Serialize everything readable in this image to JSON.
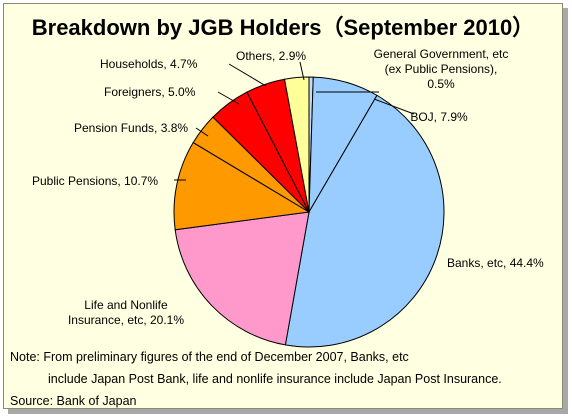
{
  "title": "Breakdown by JGB Holders（September 2010）",
  "note_line1": "Note: From preliminary figures of the end of December 2007, Banks, etc",
  "note_line2": "include Japan Post Bank, life and nonlife insurance include Japan Post Insurance.",
  "source": "Source: Bank of Japan",
  "chart_data": {
    "type": "pie",
    "title": "Breakdown by JGB Holders（September 2010）",
    "slices": [
      {
        "label": "General Government, etc (ex Public Pensions), 0.5%",
        "label_lines": [
          "General Government, etc",
          "(ex Public Pensions),",
          "0.5%"
        ],
        "value": 0.5,
        "color": "#c8d8f8"
      },
      {
        "label": "BOJ, 7.9%",
        "label_lines": [
          "BOJ, 7.9%"
        ],
        "value": 7.9,
        "color": "#99ccff"
      },
      {
        "label": "Banks, etc, 44.4%",
        "label_lines": [
          "Banks, etc, 44.4%"
        ],
        "value": 44.4,
        "color": "#99ccff"
      },
      {
        "label": "Life and Nonlife Insurance, etc, 20.1%",
        "label_lines": [
          "Life and Nonlife",
          "Insurance, etc, 20.1%"
        ],
        "value": 20.1,
        "color": "#ff99cc"
      },
      {
        "label": "Public Pensions, 10.7%",
        "label_lines": [
          "Public Pensions, 10.7%"
        ],
        "value": 10.7,
        "color": "#ff9900"
      },
      {
        "label": "Pension Funds, 3.8%",
        "label_lines": [
          "Pension Funds, 3.8%"
        ],
        "value": 3.8,
        "color": "#ff9900"
      },
      {
        "label": "Foreigners, 5.0%",
        "label_lines": [
          "Foreigners, 5.0%"
        ],
        "value": 5.0,
        "color": "#ff0000"
      },
      {
        "label": "Households, 4.7%",
        "label_lines": [
          "Households, 4.7%"
        ],
        "value": 4.7,
        "color": "#ff0000"
      },
      {
        "label": "Others, 2.9%",
        "label_lines": [
          "Others, 2.9%"
        ],
        "value": 2.9,
        "color": "#ffff99"
      }
    ],
    "start": "12 o'clock",
    "direction": "clockwise"
  }
}
